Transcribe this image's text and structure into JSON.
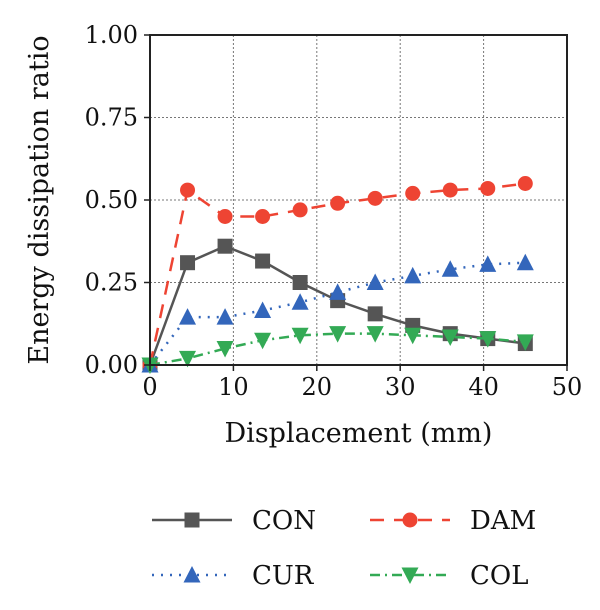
{
  "chart_data": {
    "type": "line",
    "title": "",
    "xlabel": "Displacement (mm)",
    "ylabel": "Energy dissipation ratio",
    "xlim": [
      0,
      50
    ],
    "ylim": [
      0,
      1.0
    ],
    "xticks": [
      "0",
      "10",
      "20",
      "30",
      "40",
      "50"
    ],
    "yticks": [
      "0.00",
      "0.25",
      "0.50",
      "0.75",
      "1.00"
    ],
    "grid": true,
    "legend_position": "bottom",
    "series": [
      {
        "name": "CON",
        "color": "#555555",
        "line_style": "solid",
        "marker": "square",
        "x": [
          0,
          4.5,
          9.0,
          13.5,
          18.0,
          22.5,
          27.0,
          31.5,
          36.0,
          40.5,
          45.0
        ],
        "y": [
          0.0,
          0.31,
          0.36,
          0.315,
          0.25,
          0.195,
          0.155,
          0.12,
          0.095,
          0.08,
          0.065
        ]
      },
      {
        "name": "DAM",
        "color": "#ee4433",
        "line_style": "dashed",
        "marker": "circle",
        "x": [
          0,
          4.5,
          9.0,
          13.5,
          18.0,
          22.5,
          27.0,
          31.5,
          36.0,
          40.5,
          45.0
        ],
        "y": [
          0.0,
          0.53,
          0.45,
          0.45,
          0.47,
          0.49,
          0.505,
          0.52,
          0.53,
          0.535,
          0.55
        ]
      },
      {
        "name": "CUR",
        "color": "#3366bb",
        "line_style": "dotted",
        "marker": "triangle-up",
        "x": [
          0,
          4.5,
          9.0,
          13.5,
          18.0,
          22.5,
          27.0,
          31.5,
          36.0,
          40.5,
          45.0
        ],
        "y": [
          0.0,
          0.145,
          0.145,
          0.165,
          0.19,
          0.22,
          0.25,
          0.27,
          0.29,
          0.305,
          0.31
        ]
      },
      {
        "name": "COL",
        "color": "#33aa55",
        "line_style": "dashdot",
        "marker": "triangle-down",
        "x": [
          0,
          4.5,
          9.0,
          13.5,
          18.0,
          22.5,
          27.0,
          31.5,
          36.0,
          40.5,
          45.0
        ],
        "y": [
          0.0,
          0.02,
          0.05,
          0.075,
          0.09,
          0.095,
          0.095,
          0.09,
          0.085,
          0.08,
          0.07
        ]
      }
    ]
  }
}
